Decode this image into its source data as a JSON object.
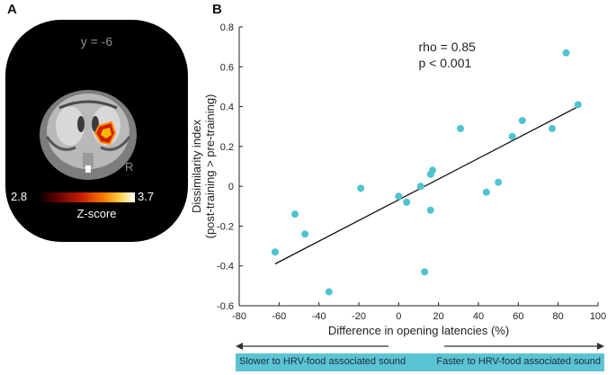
{
  "panels": {
    "a_label": "A",
    "b_label": "B"
  },
  "brain": {
    "slice_label": "y  = -6",
    "side_label": "R",
    "colorbar_min": "2.8",
    "colorbar_max": "3.7",
    "colorbar_title": "Z-score"
  },
  "chart_data": {
    "type": "scatter",
    "xlabel": "Difference in opening latencies (%)",
    "ylabel_line1": "Dissimilarity index",
    "ylabel_line2": "(post-training > pre-training)",
    "xlim": [
      -80,
      100
    ],
    "ylim": [
      -0.6,
      0.8
    ],
    "xticks": [
      -80,
      -60,
      -40,
      -20,
      0,
      20,
      40,
      60,
      80,
      100
    ],
    "yticks": [
      -0.6,
      -0.4,
      -0.2,
      0,
      0.2,
      0.4,
      0.6,
      0.8
    ],
    "xtick_labels": [
      "-80",
      "-60",
      "-40",
      "-20",
      "0",
      "20",
      "40",
      "60",
      "80",
      "100"
    ],
    "ytick_labels": [
      "-0.6",
      "-0.4",
      "-0.2",
      "0",
      "0.2",
      "0.4",
      "0.6",
      "0.8"
    ],
    "annotation_rho": "rho = 0.85",
    "annotation_p": "p < 0.001",
    "point_color": "#4fc3d0",
    "line_color": "#111111",
    "points": [
      {
        "x": -62,
        "y": -0.33
      },
      {
        "x": -52,
        "y": -0.14
      },
      {
        "x": -47,
        "y": -0.24
      },
      {
        "x": -35,
        "y": -0.53
      },
      {
        "x": -19,
        "y": -0.01
      },
      {
        "x": 0,
        "y": -0.05
      },
      {
        "x": 4,
        "y": -0.08
      },
      {
        "x": 11,
        "y": 0.0
      },
      {
        "x": 13,
        "y": -0.43
      },
      {
        "x": 16,
        "y": -0.12
      },
      {
        "x": 16,
        "y": 0.06
      },
      {
        "x": 17,
        "y": 0.08
      },
      {
        "x": 31,
        "y": 0.29
      },
      {
        "x": 44,
        "y": -0.03
      },
      {
        "x": 50,
        "y": 0.02
      },
      {
        "x": 57,
        "y": 0.25
      },
      {
        "x": 62,
        "y": 0.33
      },
      {
        "x": 77,
        "y": 0.29
      },
      {
        "x": 84,
        "y": 0.67
      },
      {
        "x": 90,
        "y": 0.41
      }
    ],
    "fit_line": {
      "x": [
        -62,
        90
      ],
      "y": [
        -0.39,
        0.4
      ]
    }
  },
  "direction_bar": {
    "left_text": "Slower to HRV-food associated sound",
    "right_text": "Faster to HRV-food associated sound"
  }
}
